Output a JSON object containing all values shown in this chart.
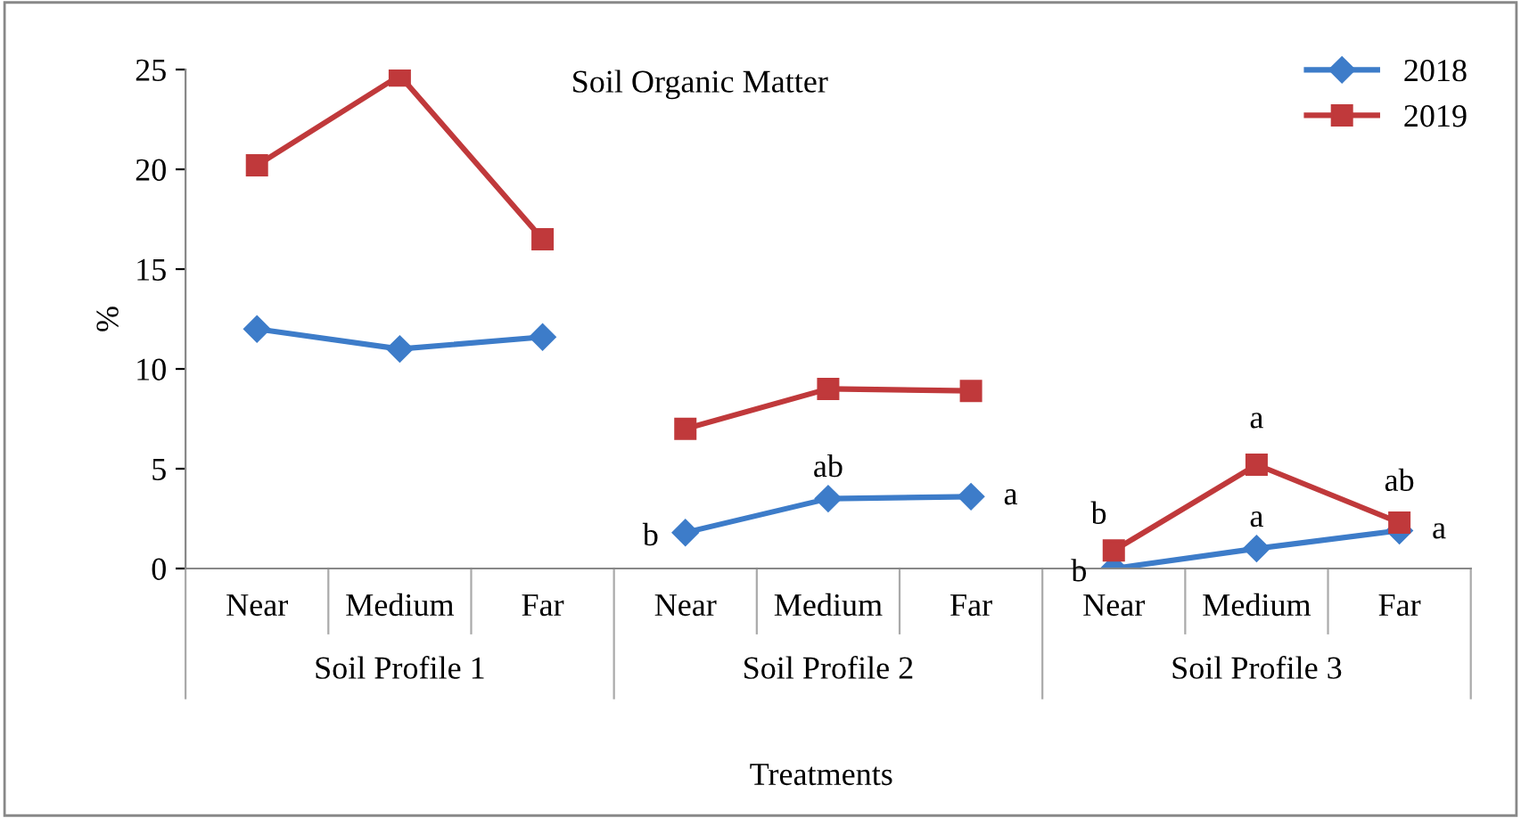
{
  "chart_data": {
    "type": "line",
    "title": "Soil Organic Matter",
    "xlabel": "Treatments",
    "ylabel": "%",
    "categories": [
      "Near",
      "Medium",
      "Far",
      "Near",
      "Medium",
      "Far",
      "Near",
      "Medium",
      "Far"
    ],
    "annotations": [
      "Soil Profile 1",
      "Soil Profile 2",
      "Soil Profile 3"
    ],
    "series": [
      {
        "name": "2018",
        "color": "#3d7cc9",
        "marker": "diamond",
        "values": [
          12.0,
          11.0,
          11.6,
          1.8,
          3.5,
          3.6,
          0.0,
          1.0,
          1.9
        ],
        "value_labels": [
          null,
          null,
          null,
          "b",
          "ab",
          "a",
          "b",
          "a",
          "a"
        ]
      },
      {
        "name": "2019",
        "color": "#c0393b",
        "marker": "square",
        "values": [
          20.2,
          24.7,
          16.5,
          7.0,
          9.0,
          8.9,
          0.9,
          5.2,
          2.3
        ],
        "value_labels": [
          null,
          null,
          null,
          null,
          null,
          null,
          "b",
          "a",
          "ab"
        ]
      }
    ],
    "ylim": [
      0,
      25
    ],
    "yticks": [
      0,
      5,
      10,
      15,
      20,
      25
    ],
    "grid": false,
    "legend": "top right",
    "line_style": "solid"
  }
}
